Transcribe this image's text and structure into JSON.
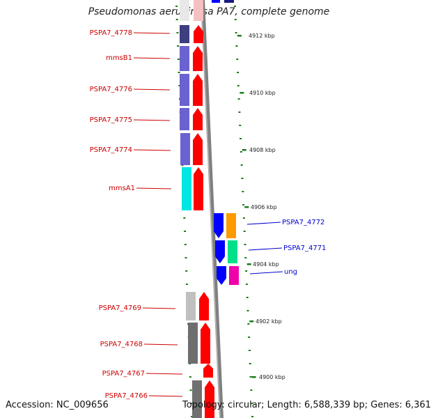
{
  "title": "Pseudomonas aeruginosa PA7, complete genome",
  "footer": {
    "accession": "Accession: NC_009656",
    "stats": "Topology: circular; Length: 6,588,339 bp; Genes: 6,361"
  },
  "colors": {
    "forward_strand": "#ff0000",
    "reverse_strand": "#0000ff",
    "forward_label": "#cc0000",
    "reverse_label": "#0000cc",
    "tick": "#1a7a1a",
    "backbone": "#808080"
  },
  "scale_labels": [
    "4912 kbp",
    "4910 kbp",
    "4908 kbp",
    "4906 kbp",
    "4904 kbp",
    "4902 kbp",
    "4900 kbp"
  ],
  "forward_genes": [
    {
      "name": "PSPA7_4778",
      "cog_color": "#3d3d80"
    },
    {
      "name": "mmsB1",
      "cog_color": "#6a62d0"
    },
    {
      "name": "PSPA7_4776",
      "cog_color": "#6a62d0"
    },
    {
      "name": "PSPA7_4775",
      "cog_color": "#6a62d0"
    },
    {
      "name": "PSPA7_4774",
      "cog_color": "#6a62d0"
    },
    {
      "name": "mmsA1",
      "cog_color": "#00e5e5"
    },
    {
      "name": "PSPA7_4769",
      "cog_color": "#c0c0c0"
    },
    {
      "name": "PSPA7_4768",
      "cog_color": "#6e6e6e"
    },
    {
      "name": "PSPA7_4767",
      "cog_color": ""
    },
    {
      "name": "PSPA7_4766",
      "cog_color": "#707070"
    }
  ],
  "reverse_genes": [
    {
      "name": "PSPA7_4772",
      "cog_color": "#ff9900"
    },
    {
      "name": "PSPA7_4771",
      "cog_color": "#00e08a"
    },
    {
      "name": "ung",
      "cog_color": "#ee00aa"
    }
  ]
}
